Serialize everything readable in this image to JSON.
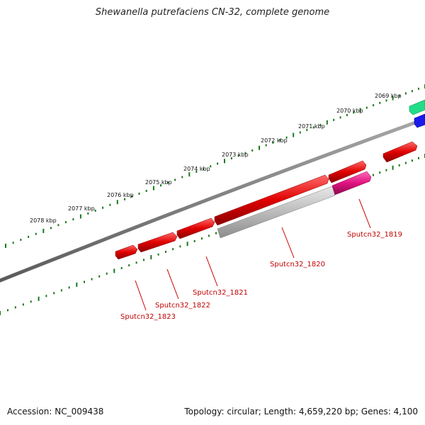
{
  "title": "Shewanella putrefaciens CN-32, complete genome",
  "footer": {
    "accession": "Accession: NC_009438",
    "summary": "Topology: circular; Length: 4,659,220 bp; Genes: 4,100"
  },
  "kbp_labels": [
    "2069 kbp",
    "2070 kbp",
    "2071 kbp",
    "2072 kbp",
    "2073 kbp",
    "2074 kbp",
    "2075 kbp",
    "2076 kbp",
    "2077 kbp",
    "2078 kbp"
  ],
  "gene_labels": [
    "Sputcn32_1819",
    "Sputcn32_1820",
    "Sputcn32_1821",
    "Sputcn32_1822",
    "Sputcn32_1823"
  ],
  "colors": {
    "backbone": "#7a7a7a",
    "tick": "#1a7a1a",
    "gene_forward": "#e00000",
    "gene_reverse_pseudo": "#b8b8b8",
    "gene_pink": "#e0117f",
    "gene_green": "#22dd88",
    "gene_blue": "#1a1aee",
    "label_red": "#c00000",
    "leader": "#cc0000"
  }
}
